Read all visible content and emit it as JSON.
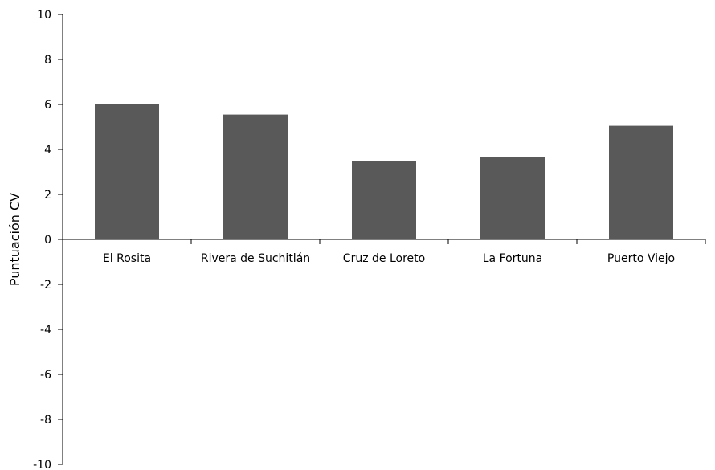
{
  "chart_data": {
    "type": "bar",
    "categories": [
      "El Rosita",
      "Rivera de Suchitlán",
      "Cruz de Loreto",
      "La Fortuna",
      "Puerto Viejo"
    ],
    "values": [
      6.0,
      5.55,
      3.47,
      3.65,
      5.05
    ],
    "ylabel": "Puntuación CV",
    "xlabel": "",
    "ylim": [
      -10,
      10
    ],
    "yticks": [
      10,
      8,
      6,
      4,
      2,
      0,
      -2,
      -4,
      -6,
      -8,
      -10
    ],
    "bar_color": "#595959",
    "grid": false
  }
}
